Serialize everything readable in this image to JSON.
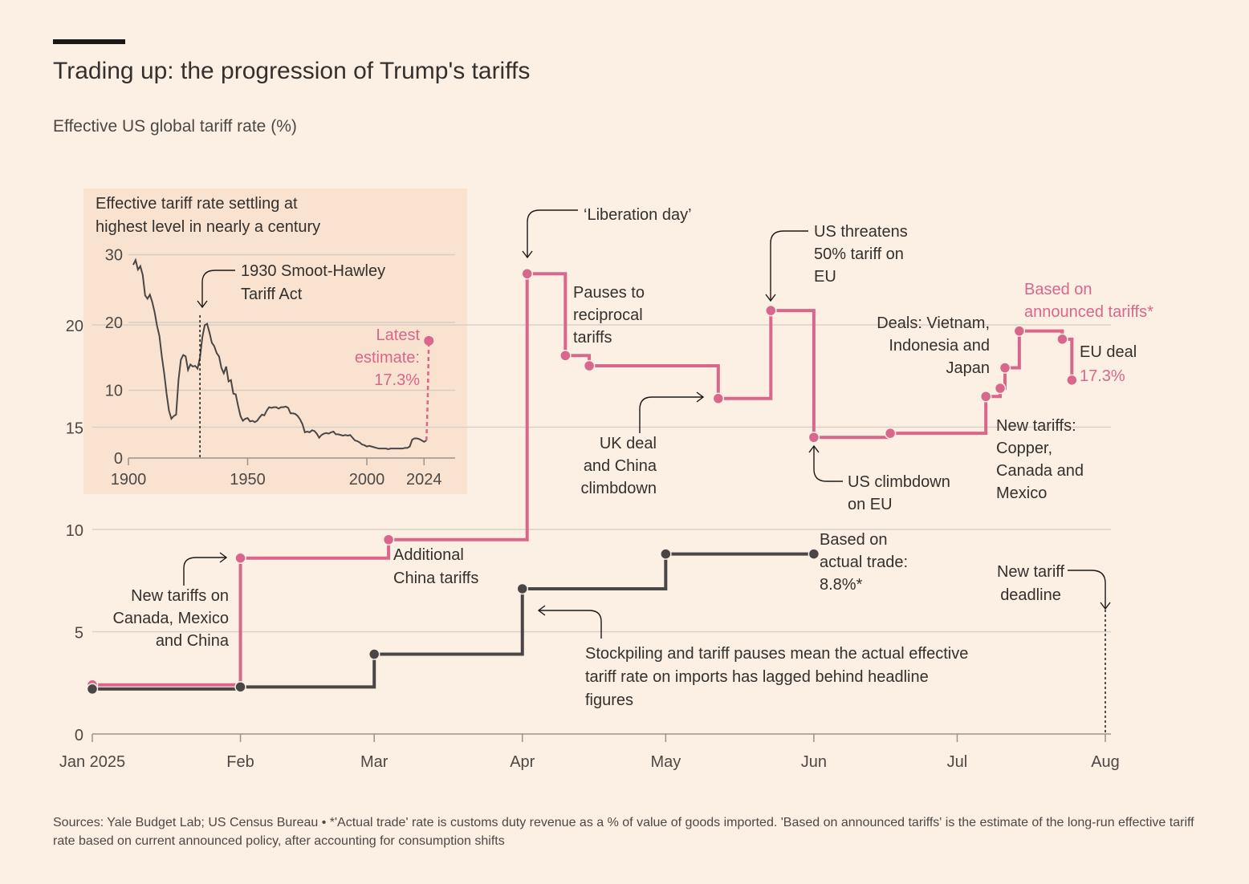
{
  "header": {
    "title": "Trading up: the progression of Trump's tariffs",
    "subtitle": "Effective US global tariff rate (%)"
  },
  "footer": {
    "source": "Sources: Yale Budget Lab; US Census Bureau • *'Actual trade' rate is customs duty revenue as a % of value of goods imported. 'Based on announced tariffs' is the estimate of the long-run effective tariff rate based on current announced policy, after accounting for consumption shifts"
  },
  "colors": {
    "background": "#fcf0e4",
    "inset_background": "#f9e3d0",
    "announced": "#d9668b",
    "actual": "#4a4646",
    "grid": "#d8cfc7"
  },
  "annotations": {
    "liberation_day": "‘Liberation day’",
    "pauses": [
      "Pauses to",
      "reciprocal",
      "tariffs"
    ],
    "us_threatens": [
      "US threatens",
      "50% tariff on",
      "EU"
    ],
    "based_announced": [
      "Based on",
      "announced tariffs*"
    ],
    "deals": [
      "Deals: Vietnam,",
      "Indonesia and",
      "Japan"
    ],
    "eu_deal": "EU deal",
    "eu_deal_value": "17.3%",
    "uk_deal": [
      "UK deal",
      "and China",
      "climbdown"
    ],
    "us_climbdown": [
      "US climbdown",
      "on EU"
    ],
    "new_tariffs_ccm": [
      "New tariffs:",
      "Copper,",
      "Canada and",
      "Mexico"
    ],
    "additional_china": [
      "Additional",
      "China tariffs"
    ],
    "new_tariffs_cmc": [
      "New tariffs on",
      "Canada, Mexico",
      "and China"
    ],
    "based_actual": [
      "Based on",
      "actual trade:",
      "8.8%*"
    ],
    "new_deadline": [
      "New tariff",
      "deadline"
    ],
    "stockpiling": [
      "Stockpiling and tariff pauses mean the actual effective",
      "tariff rate on imports has lagged behind headline",
      "figures"
    ]
  },
  "chart_data": [
    {
      "type": "line",
      "title": "",
      "ylabel": "Effective US global tariff rate (%)",
      "x_ticks": [
        "Jan 2025",
        "Feb",
        "Mar",
        "Apr",
        "May",
        "Jun",
        "Jul",
        "Aug"
      ],
      "xlim": [
        "2025-01-01",
        "2025-08-01"
      ],
      "ylim": [
        0,
        25
      ],
      "y_ticks": [
        0,
        5,
        10,
        15,
        20
      ],
      "grid": true,
      "series": [
        {
          "name": "Based on announced tariffs*",
          "step": true,
          "points": [
            [
              "2025-01-01",
              2.4
            ],
            [
              "2025-02-01",
              8.6
            ],
            [
              "2025-03-04",
              9.5
            ],
            [
              "2025-04-02",
              22.5
            ],
            [
              "2025-04-10",
              18.5
            ],
            [
              "2025-04-15",
              18.0
            ],
            [
              "2025-05-12",
              16.4
            ],
            [
              "2025-05-23",
              20.7
            ],
            [
              "2025-06-01",
              14.5
            ],
            [
              "2025-06-17",
              14.7
            ],
            [
              "2025-07-07",
              16.5
            ],
            [
              "2025-07-10",
              16.9
            ],
            [
              "2025-07-11",
              17.9
            ],
            [
              "2025-07-14",
              19.7
            ],
            [
              "2025-07-23",
              19.3
            ],
            [
              "2025-07-25",
              17.3
            ]
          ]
        },
        {
          "name": "Based on actual trade: 8.8%*",
          "step": true,
          "points": [
            [
              "2025-01-01",
              2.2
            ],
            [
              "2025-02-01",
              2.3
            ],
            [
              "2025-03-01",
              3.9
            ],
            [
              "2025-04-01",
              7.1
            ],
            [
              "2025-05-01",
              8.8
            ],
            [
              "2025-06-01",
              8.8
            ]
          ]
        }
      ]
    },
    {
      "type": "line",
      "title": "Effective tariff rate settling at highest level in nearly a century",
      "title_lines": [
        "Effective tariff rate settling at",
        "highest level in nearly a century"
      ],
      "x_ticks": [
        1900,
        1950,
        2000,
        2024
      ],
      "xlim": [
        1900,
        2030
      ],
      "ylim": [
        0,
        30
      ],
      "y_ticks": [
        0,
        10,
        20,
        30
      ],
      "grid": true,
      "annotations": {
        "smoot_hawley": [
          "1930 Smoot-Hawley",
          "Tariff Act"
        ],
        "latest": [
          "Latest",
          "estimate:",
          "17.3%"
        ]
      },
      "series": [
        {
          "name": "Historical",
          "points": [
            [
              1902,
              28.5
            ],
            [
              1903,
              29.2
            ],
            [
              1904,
              27.8
            ],
            [
              1905,
              28.3
            ],
            [
              1906,
              27.0
            ],
            [
              1907,
              24.0
            ],
            [
              1908,
              23.5
            ],
            [
              1909,
              24.1
            ],
            [
              1910,
              23.0
            ],
            [
              1911,
              21.5
            ],
            [
              1912,
              19.5
            ],
            [
              1913,
              18.0
            ],
            [
              1914,
              15.0
            ],
            [
              1915,
              12.5
            ],
            [
              1916,
              9.5
            ],
            [
              1917,
              7.0
            ],
            [
              1918,
              5.8
            ],
            [
              1919,
              6.2
            ],
            [
              1920,
              6.4
            ],
            [
              1921,
              11.5
            ],
            [
              1922,
              14.5
            ],
            [
              1923,
              15.2
            ],
            [
              1924,
              15.0
            ],
            [
              1925,
              13.0
            ],
            [
              1926,
              13.8
            ],
            [
              1927,
              13.5
            ],
            [
              1928,
              13.6
            ],
            [
              1929,
              13.2
            ],
            [
              1930,
              14.8
            ],
            [
              1931,
              17.8
            ],
            [
              1932,
              19.6
            ],
            [
              1933,
              19.8
            ],
            [
              1934,
              18.5
            ],
            [
              1935,
              17.0
            ],
            [
              1936,
              16.5
            ],
            [
              1937,
              15.5
            ],
            [
              1938,
              15.0
            ],
            [
              1939,
              13.3
            ],
            [
              1940,
              12.5
            ],
            [
              1941,
              13.5
            ],
            [
              1942,
              11.3
            ],
            [
              1943,
              11.5
            ],
            [
              1944,
              9.5
            ],
            [
              1945,
              9.4
            ],
            [
              1946,
              7.7
            ],
            [
              1947,
              6.2
            ],
            [
              1948,
              5.5
            ],
            [
              1949,
              5.8
            ],
            [
              1950,
              5.9
            ],
            [
              1951,
              5.4
            ],
            [
              1952,
              5.5
            ],
            [
              1953,
              5.3
            ],
            [
              1954,
              5.5
            ],
            [
              1955,
              6.0
            ],
            [
              1956,
              6.4
            ],
            [
              1957,
              6.3
            ],
            [
              1958,
              7.0
            ],
            [
              1959,
              7.5
            ],
            [
              1960,
              7.4
            ],
            [
              1961,
              7.5
            ],
            [
              1962,
              7.5
            ],
            [
              1963,
              7.3
            ],
            [
              1964,
              7.5
            ],
            [
              1965,
              7.5
            ],
            [
              1966,
              7.6
            ],
            [
              1967,
              7.4
            ],
            [
              1968,
              6.6
            ],
            [
              1969,
              6.6
            ],
            [
              1970,
              6.5
            ],
            [
              1971,
              6.2
            ],
            [
              1972,
              5.7
            ],
            [
              1973,
              5.0
            ],
            [
              1974,
              3.8
            ],
            [
              1975,
              3.9
            ],
            [
              1976,
              3.8
            ],
            [
              1977,
              4.1
            ],
            [
              1978,
              4.0
            ],
            [
              1979,
              3.6
            ],
            [
              1980,
              3.0
            ],
            [
              1981,
              3.4
            ],
            [
              1982,
              3.6
            ],
            [
              1983,
              3.7
            ],
            [
              1984,
              3.6
            ],
            [
              1985,
              3.8
            ],
            [
              1986,
              3.9
            ],
            [
              1987,
              3.5
            ],
            [
              1988,
              3.5
            ],
            [
              1989,
              3.4
            ],
            [
              1990,
              3.3
            ],
            [
              1991,
              3.4
            ],
            [
              1992,
              3.3
            ],
            [
              1993,
              3.4
            ],
            [
              1994,
              3.0
            ],
            [
              1995,
              2.6
            ],
            [
              1996,
              2.5
            ],
            [
              1997,
              2.3
            ],
            [
              1998,
              2.0
            ],
            [
              1999,
              1.9
            ],
            [
              2000,
              1.7
            ],
            [
              2001,
              1.8
            ],
            [
              2002,
              1.7
            ],
            [
              2003,
              1.6
            ],
            [
              2004,
              1.5
            ],
            [
              2005,
              1.4
            ],
            [
              2006,
              1.4
            ],
            [
              2007,
              1.4
            ],
            [
              2008,
              1.4
            ],
            [
              2009,
              1.3
            ],
            [
              2010,
              1.4
            ],
            [
              2011,
              1.4
            ],
            [
              2012,
              1.4
            ],
            [
              2013,
              1.4
            ],
            [
              2014,
              1.4
            ],
            [
              2015,
              1.4
            ],
            [
              2016,
              1.5
            ],
            [
              2017,
              1.5
            ],
            [
              2018,
              1.7
            ],
            [
              2019,
              2.7
            ],
            [
              2020,
              2.9
            ],
            [
              2021,
              2.9
            ],
            [
              2022,
              2.8
            ],
            [
              2023,
              2.6
            ],
            [
              2024,
              2.4
            ],
            [
              2025,
              2.6
            ]
          ]
        },
        {
          "name": "Latest estimate",
          "dashed": true,
          "points": [
            [
              2025,
              2.6
            ],
            [
              2025.5,
              8.0
            ],
            [
              2026,
              17.3
            ]
          ]
        }
      ]
    }
  ]
}
